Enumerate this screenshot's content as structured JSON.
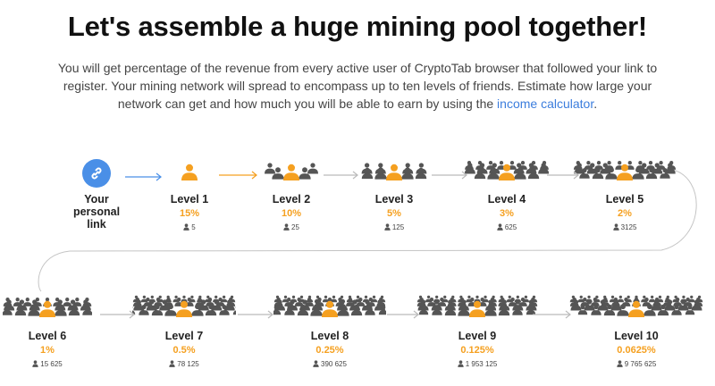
{
  "header": {
    "title": "Let's assemble a huge mining pool together!",
    "intro_text": "You will get percentage of the revenue from every active user of CryptoTab browser that followed your link to register. Your mining network will spread to encompass up to ten levels of friends. Estimate how large your network can get and how much you will be able to earn by using the",
    "intro_link": "income calculator",
    "intro_end": "."
  },
  "personal_link": {
    "label_lines": [
      "Your",
      "personal",
      "link"
    ],
    "icon": "link-icon"
  },
  "levels": [
    {
      "label": "Level 1",
      "percent": "15%",
      "count": "5"
    },
    {
      "label": "Level 2",
      "percent": "10%",
      "count": "25"
    },
    {
      "label": "Level 3",
      "percent": "5%",
      "count": "125"
    },
    {
      "label": "Level 4",
      "percent": "3%",
      "count": "625"
    },
    {
      "label": "Level 5",
      "percent": "2%",
      "count": "3125"
    },
    {
      "label": "Level 6",
      "percent": "1%",
      "count": "15 625"
    },
    {
      "label": "Level 7",
      "percent": "0.5%",
      "count": "78 125"
    },
    {
      "label": "Level 8",
      "percent": "0.25%",
      "count": "390 625"
    },
    {
      "label": "Level 9",
      "percent": "0.125%",
      "count": "1 953 125"
    },
    {
      "label": "Level 10",
      "percent": "0.0625%",
      "count": "9 765 625"
    }
  ],
  "colors": {
    "accent_orange": "#f5a020",
    "link_blue": "#4a8fe7",
    "crowd_gray": "#555555",
    "arrow_gray": "#bbbbbb"
  }
}
